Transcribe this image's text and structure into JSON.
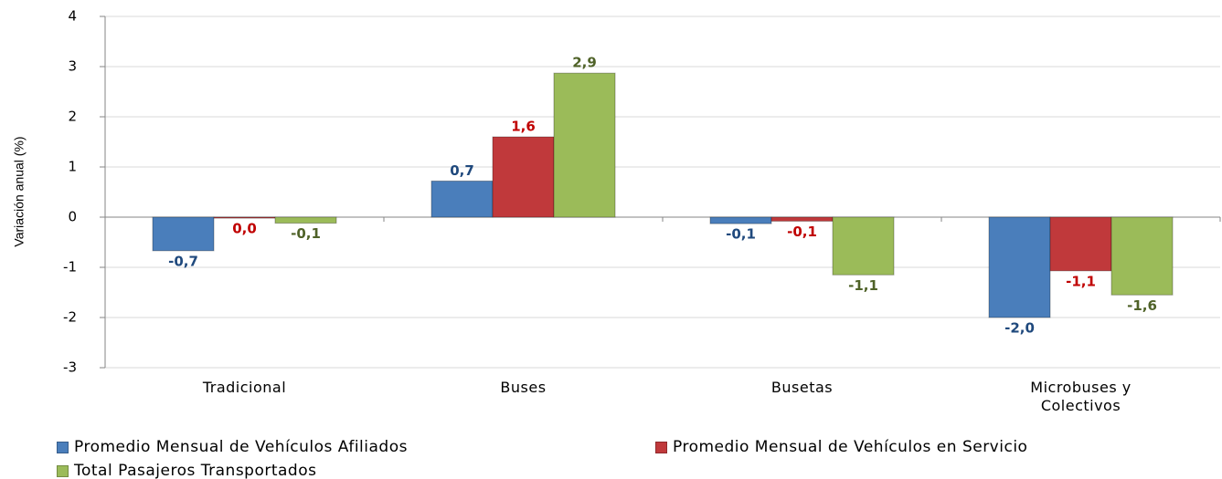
{
  "chart_data": {
    "type": "bar",
    "y_label": "Variación anual (%)",
    "categories": [
      "Tradicional",
      "Buses",
      "Busetas",
      "Microbuses y Colectivos"
    ],
    "series": [
      {
        "name": "Promedio Mensual de Vehículos Afiliados",
        "color": "#4a7ebb",
        "label_color": "#1f497d",
        "values": [
          -0.67,
          0.72,
          -0.13,
          -2.0
        ],
        "value_labels": [
          "-0,7",
          "0,7",
          "-0,1",
          "-2,0"
        ]
      },
      {
        "name": "Promedio Mensual de Vehículos en Servicio",
        "color": "#c0393b",
        "label_color": "#c00000",
        "values": [
          -0.02,
          1.6,
          -0.08,
          -1.07
        ],
        "value_labels": [
          "0,0",
          "1,6",
          "-0,1",
          "-1,1"
        ]
      },
      {
        "name": "Total Pasajeros Transportados",
        "color": "#9bbb59",
        "label_color": "#4f6228",
        "values": [
          -0.12,
          2.87,
          -1.15,
          -1.55
        ],
        "value_labels": [
          "-0,1",
          "2,9",
          "-1,1",
          "-1,6"
        ]
      }
    ],
    "ylim": [
      -3,
      4
    ],
    "yticks": [
      -3,
      -2,
      -1,
      0,
      1,
      2,
      3,
      4
    ],
    "grid": true
  }
}
